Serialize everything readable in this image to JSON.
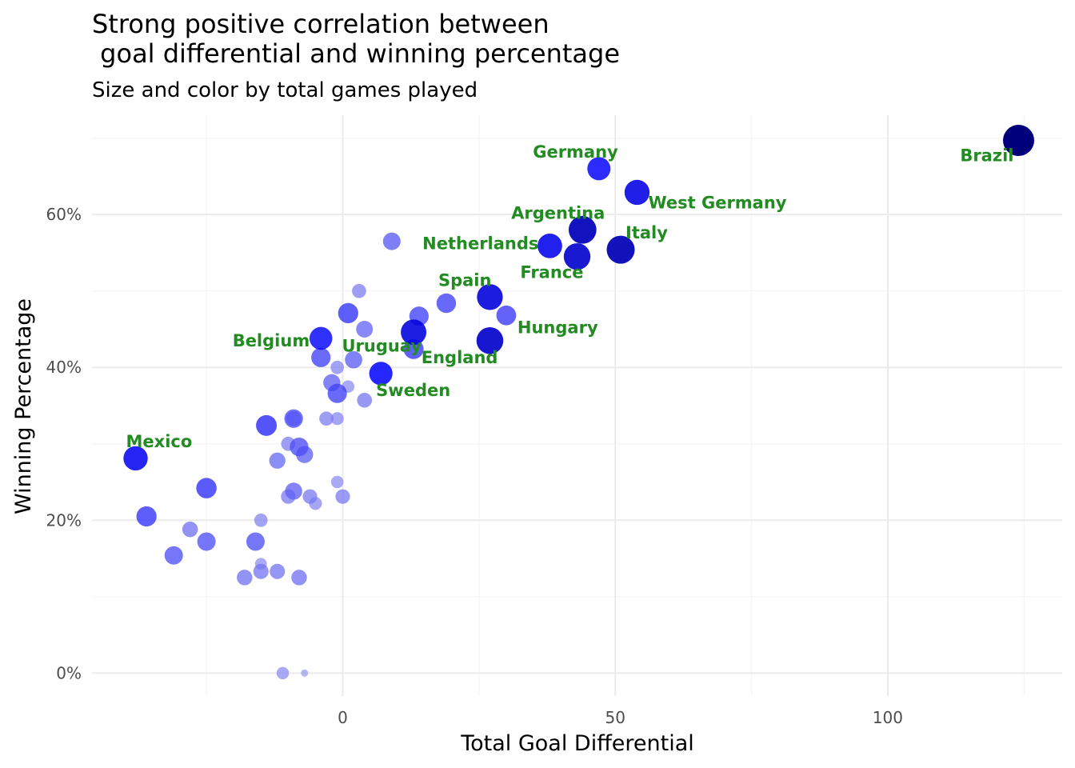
{
  "chart_data": {
    "type": "scatter",
    "title_line1": "Strong positive correlation between",
    "title_line2": " goal differential and winning percentage",
    "subtitle": "Size and color by total games played",
    "xlabel": "Total Goal Differential",
    "ylabel": "Winning Percentage",
    "xlim": [
      -46,
      132
    ],
    "ylim": [
      -0.03,
      0.73
    ],
    "x_ticks": [
      {
        "value": 0,
        "label": "0"
      },
      {
        "value": 50,
        "label": "50"
      },
      {
        "value": 100,
        "label": "100"
      }
    ],
    "x_minor": [
      -25,
      25,
      75,
      125
    ],
    "y_ticks": [
      {
        "value": 0,
        "label": "0%"
      },
      {
        "value": 0.2,
        "label": "20%"
      },
      {
        "value": 0.4,
        "label": "40%"
      },
      {
        "value": 0.6,
        "label": "60%"
      }
    ],
    "y_minor": [
      0.1,
      0.3,
      0.5,
      0.7
    ],
    "grid": true,
    "size_color_variable": "total games played",
    "points": [
      {
        "x": 124,
        "y": 0.697,
        "games": 109
      },
      {
        "x": 47,
        "y": 0.66,
        "games": 50
      },
      {
        "x": 54,
        "y": 0.629,
        "games": 62
      },
      {
        "x": 44,
        "y": 0.58,
        "games": 81
      },
      {
        "x": 51,
        "y": 0.554,
        "games": 83
      },
      {
        "x": 38,
        "y": 0.559,
        "games": 59
      },
      {
        "x": 43,
        "y": 0.545,
        "games": 73
      },
      {
        "x": 27,
        "y": 0.492,
        "games": 67
      },
      {
        "x": 30,
        "y": 0.468,
        "games": 32
      },
      {
        "x": 27,
        "y": 0.435,
        "games": 74
      },
      {
        "x": 13,
        "y": 0.446,
        "games": 65
      },
      {
        "x": 13,
        "y": 0.424,
        "games": 33
      },
      {
        "x": 7,
        "y": 0.392,
        "games": 51
      },
      {
        "x": -4,
        "y": 0.438,
        "games": 48
      },
      {
        "x": -4,
        "y": 0.413,
        "games": 30
      },
      {
        "x": -38,
        "y": 0.281,
        "games": 57
      },
      {
        "x": 9,
        "y": 0.565,
        "games": 23
      },
      {
        "x": 3,
        "y": 0.5,
        "games": 12
      },
      {
        "x": 1,
        "y": 0.471,
        "games": 34
      },
      {
        "x": 14,
        "y": 0.467,
        "games": 30
      },
      {
        "x": 19,
        "y": 0.484,
        "games": 31
      },
      {
        "x": 4,
        "y": 0.45,
        "games": 20
      },
      {
        "x": 2,
        "y": 0.41,
        "games": 22
      },
      {
        "x": -1,
        "y": 0.4,
        "games": 10
      },
      {
        "x": 1,
        "y": 0.375,
        "games": 8
      },
      {
        "x": -2,
        "y": 0.38,
        "games": 21
      },
      {
        "x": -1,
        "y": 0.366,
        "games": 30
      },
      {
        "x": 4,
        "y": 0.357,
        "games": 14
      },
      {
        "x": -3,
        "y": 0.333,
        "games": 12
      },
      {
        "x": -1,
        "y": 0.333,
        "games": 9
      },
      {
        "x": -9,
        "y": 0.333,
        "games": 27
      },
      {
        "x": -9,
        "y": 0.333,
        "games": 15
      },
      {
        "x": -14,
        "y": 0.324,
        "games": 37
      },
      {
        "x": -10,
        "y": 0.3,
        "games": 12
      },
      {
        "x": -8,
        "y": 0.296,
        "games": 27
      },
      {
        "x": -7,
        "y": 0.286,
        "games": 21
      },
      {
        "x": -12,
        "y": 0.278,
        "games": 18
      },
      {
        "x": -25,
        "y": 0.242,
        "games": 35
      },
      {
        "x": -36,
        "y": 0.205,
        "games": 34
      },
      {
        "x": -9,
        "y": 0.238,
        "games": 21
      },
      {
        "x": -1,
        "y": 0.25,
        "games": 8
      },
      {
        "x": -10,
        "y": 0.231,
        "games": 13
      },
      {
        "x": -6,
        "y": 0.231,
        "games": 13
      },
      {
        "x": 0,
        "y": 0.231,
        "games": 13
      },
      {
        "x": -5,
        "y": 0.222,
        "games": 9
      },
      {
        "x": -15,
        "y": 0.2,
        "games": 10
      },
      {
        "x": -28,
        "y": 0.188,
        "games": 16
      },
      {
        "x": -25,
        "y": 0.172,
        "games": 26
      },
      {
        "x": -16,
        "y": 0.172,
        "games": 26
      },
      {
        "x": -31,
        "y": 0.154,
        "games": 26
      },
      {
        "x": -15,
        "y": 0.143,
        "games": 7
      },
      {
        "x": -15,
        "y": 0.133,
        "games": 15
      },
      {
        "x": -12,
        "y": 0.133,
        "games": 15
      },
      {
        "x": -18,
        "y": 0.125,
        "games": 16
      },
      {
        "x": -8,
        "y": 0.125,
        "games": 16
      },
      {
        "x": -11,
        "y": 0.0,
        "games": 8
      },
      {
        "x": -7,
        "y": 0.0,
        "games": 3
      }
    ],
    "annotations": [
      {
        "text": "Brazil",
        "x": 124,
        "y": 0.697,
        "anchor": "end",
        "dx": -6,
        "dy": 26
      },
      {
        "text": "Germany",
        "x": 47,
        "y": 0.66,
        "anchor": "end",
        "dx": 24,
        "dy": -14
      },
      {
        "text": "West Germany",
        "x": 54,
        "y": 0.629,
        "anchor": "start",
        "dx": 14,
        "dy": 20
      },
      {
        "text": "Argentina",
        "x": 44,
        "y": 0.58,
        "anchor": "end",
        "dx": 28,
        "dy": -14
      },
      {
        "text": "Italy",
        "x": 51,
        "y": 0.554,
        "anchor": "start",
        "dx": 6,
        "dy": -14
      },
      {
        "text": "Netherlands",
        "x": 38,
        "y": 0.559,
        "anchor": "end",
        "dx": -14,
        "dy": 4
      },
      {
        "text": "France",
        "x": 43,
        "y": 0.545,
        "anchor": "end",
        "dx": 8,
        "dy": 27
      },
      {
        "text": "Spain",
        "x": 27,
        "y": 0.492,
        "anchor": "end",
        "dx": 2,
        "dy": -14
      },
      {
        "text": "Hungary",
        "x": 30,
        "y": 0.468,
        "anchor": "start",
        "dx": 14,
        "dy": 22
      },
      {
        "text": "England",
        "x": 27,
        "y": 0.435,
        "anchor": "end",
        "dx": 10,
        "dy": 28
      },
      {
        "text": "Uruguay",
        "x": 13,
        "y": 0.446,
        "anchor": "end",
        "dx": 10,
        "dy": 24
      },
      {
        "text": "Sweden",
        "x": 7,
        "y": 0.392,
        "anchor": "start",
        "dx": -6,
        "dy": 28
      },
      {
        "text": "Belgium",
        "x": -4,
        "y": 0.438,
        "anchor": "end",
        "dx": -14,
        "dy": 10
      },
      {
        "text": "Mexico",
        "x": -38,
        "y": 0.281,
        "anchor": "start",
        "dx": -12,
        "dy": -14
      }
    ],
    "colors": {
      "label": "#228b22",
      "grid_major": "#ebebeb",
      "grid_minor": "#f5f5f5",
      "scale_low": "#9999ee",
      "scale_mid": "#0000ff",
      "scale_high": "#00007a"
    }
  }
}
